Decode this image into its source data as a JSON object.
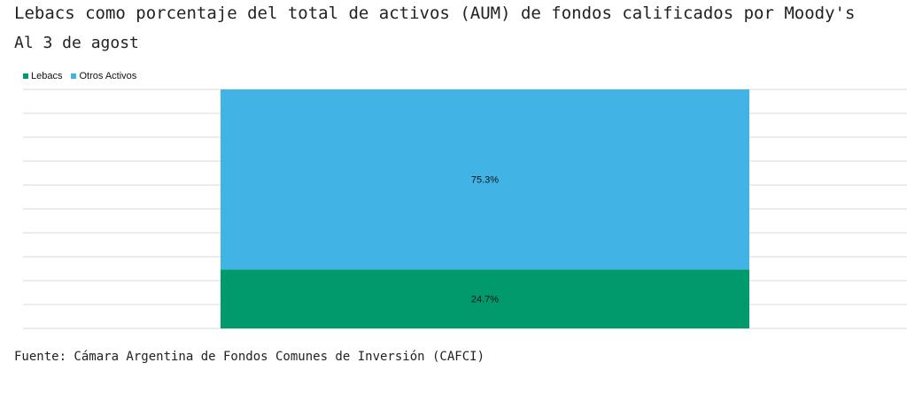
{
  "title": "Lebacs como porcentaje del total de activos (AUM) de fondos calificados por Moody's",
  "subtitle": "Al 3 de agost",
  "source": "Fuente: Cámara Argentina de Fondos Comunes de Inversión (CAFCI)",
  "chart_data": {
    "type": "bar",
    "stacked": true,
    "categories": [
      ""
    ],
    "series": [
      {
        "name": "Lebacs",
        "values": [
          24.7
        ],
        "label": "24.7%",
        "color": "#009a6d"
      },
      {
        "name": "Otros Activos",
        "values": [
          75.3
        ],
        "label": "75.3%",
        "color": "#41b4e5"
      }
    ],
    "ylim": [
      0,
      100
    ],
    "grid": true,
    "legend": "top-left"
  }
}
